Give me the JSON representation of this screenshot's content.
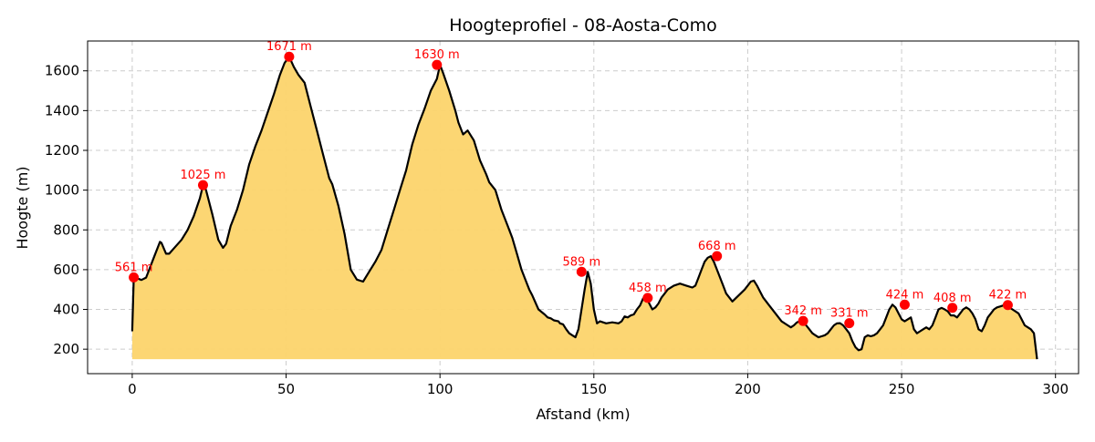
{
  "chart_data": {
    "type": "area",
    "title": "Hoogteprofiel - 08-Aosta-Como",
    "xlabel": "Afstand (km)",
    "ylabel": "Hoogte (m)",
    "xlim": [
      -14.5,
      307.5
    ],
    "ylim": [
      77,
      1750
    ],
    "xticks": [
      0,
      50,
      100,
      150,
      200,
      250,
      300
    ],
    "yticks": [
      200,
      400,
      600,
      800,
      1000,
      1200,
      1400,
      1600
    ],
    "grid": true,
    "fill_base": 150,
    "colors": {
      "fill": "#fcd46c",
      "line": "#000000",
      "marker": "#ff0000",
      "grid": "#cccccc"
    },
    "profile": {
      "x": [
        0,
        0.5,
        1,
        3,
        4.5,
        5.5,
        7,
        9,
        9.5,
        11,
        12,
        14,
        16,
        18,
        20,
        22,
        23,
        24,
        26,
        28,
        29.5,
        30.5,
        32,
        34,
        36,
        38,
        40,
        42,
        44,
        46,
        48,
        49.5,
        51,
        52.5,
        54,
        56,
        58,
        60,
        62,
        64,
        65,
        67,
        69,
        71,
        73,
        75,
        77,
        79,
        81,
        83,
        85,
        87,
        89,
        91,
        93,
        95,
        97,
        99,
        100,
        101,
        103,
        105,
        106,
        107.5,
        109,
        111,
        113,
        115,
        116,
        118,
        120,
        122,
        123.5,
        125,
        126.5,
        128,
        129,
        130,
        132,
        134,
        135,
        136,
        137,
        138.5,
        139,
        140,
        141,
        142,
        143,
        144,
        145,
        146,
        147,
        148,
        149,
        150,
        151,
        152,
        154,
        156,
        158,
        159,
        160,
        161,
        162,
        163,
        164,
        165,
        166,
        167,
        168,
        169,
        170,
        171,
        172,
        173,
        174,
        176,
        178,
        180,
        182,
        183,
        184,
        185,
        186,
        187,
        188,
        189,
        190,
        191,
        192,
        193,
        195,
        197,
        199,
        200,
        201,
        202,
        203,
        204,
        205,
        207,
        209,
        211,
        213,
        214,
        215,
        216,
        217,
        218,
        219,
        220,
        221,
        222,
        223,
        224,
        225,
        226,
        227,
        228,
        229,
        230,
        231,
        232,
        233,
        234,
        235,
        236,
        237,
        238,
        239,
        240,
        241,
        242,
        243,
        244,
        245,
        246,
        247,
        248,
        249,
        250,
        251,
        252,
        253,
        254,
        255,
        256,
        257,
        258,
        259,
        260,
        261,
        262,
        263,
        264,
        265,
        266,
        267,
        268,
        269,
        270,
        271,
        272,
        273,
        274,
        275,
        276,
        277,
        278,
        279,
        280,
        281,
        282,
        283,
        284,
        285,
        286,
        287,
        288,
        289,
        290,
        291,
        292,
        293,
        294
      ],
      "y": [
        290,
        561,
        560,
        548,
        560,
        600,
        660,
        740,
        735,
        680,
        680,
        715,
        750,
        800,
        870,
        960,
        1025,
        1000,
        880,
        750,
        710,
        730,
        820,
        900,
        1000,
        1130,
        1220,
        1300,
        1390,
        1480,
        1580,
        1640,
        1671,
        1620,
        1580,
        1540,
        1420,
        1300,
        1180,
        1060,
        1030,
        920,
        780,
        600,
        550,
        540,
        590,
        640,
        700,
        800,
        900,
        1000,
        1100,
        1230,
        1330,
        1410,
        1500,
        1560,
        1630,
        1590,
        1500,
        1400,
        1340,
        1280,
        1300,
        1250,
        1150,
        1080,
        1040,
        1000,
        900,
        820,
        760,
        680,
        600,
        540,
        500,
        470,
        400,
        375,
        360,
        355,
        345,
        340,
        330,
        325,
        300,
        280,
        270,
        260,
        300,
        400,
        500,
        589,
        530,
        400,
        330,
        340,
        330,
        335,
        330,
        340,
        365,
        360,
        370,
        375,
        400,
        420,
        455,
        458,
        430,
        400,
        410,
        430,
        460,
        480,
        500,
        520,
        530,
        520,
        510,
        520,
        560,
        600,
        640,
        660,
        668,
        640,
        600,
        560,
        520,
        480,
        440,
        470,
        500,
        520,
        540,
        545,
        520,
        490,
        460,
        420,
        380,
        340,
        320,
        310,
        320,
        335,
        342,
        335,
        320,
        300,
        280,
        270,
        260,
        265,
        270,
        280,
        300,
        320,
        330,
        331,
        320,
        300,
        280,
        240,
        210,
        195,
        200,
        260,
        270,
        265,
        270,
        280,
        300,
        320,
        360,
        400,
        424,
        410,
        380,
        350,
        340,
        350,
        360,
        300,
        280,
        290,
        300,
        310,
        300,
        320,
        360,
        400,
        408,
        400,
        390,
        370,
        370,
        360,
        380,
        400,
        410,
        400,
        380,
        350,
        300,
        290,
        320,
        360,
        380,
        400,
        410,
        415,
        420,
        422,
        410,
        400,
        390,
        380,
        350,
        320,
        310,
        300,
        280,
        150
      ]
    },
    "peaks": [
      {
        "x": 0.5,
        "y": 561,
        "label": "561 m"
      },
      {
        "x": 23,
        "y": 1025,
        "label": "1025 m"
      },
      {
        "x": 51,
        "y": 1671,
        "label": "1671 m"
      },
      {
        "x": 99,
        "y": 1630,
        "label": "1630 m"
      },
      {
        "x": 146,
        "y": 589,
        "label": "589 m"
      },
      {
        "x": 167.5,
        "y": 458,
        "label": "458 m"
      },
      {
        "x": 190,
        "y": 668,
        "label": "668 m"
      },
      {
        "x": 218,
        "y": 342,
        "label": "342 m"
      },
      {
        "x": 233,
        "y": 331,
        "label": "331 m"
      },
      {
        "x": 251,
        "y": 424,
        "label": "424 m"
      },
      {
        "x": 266.5,
        "y": 408,
        "label": "408 m"
      },
      {
        "x": 284.5,
        "y": 422,
        "label": "422 m"
      }
    ]
  }
}
